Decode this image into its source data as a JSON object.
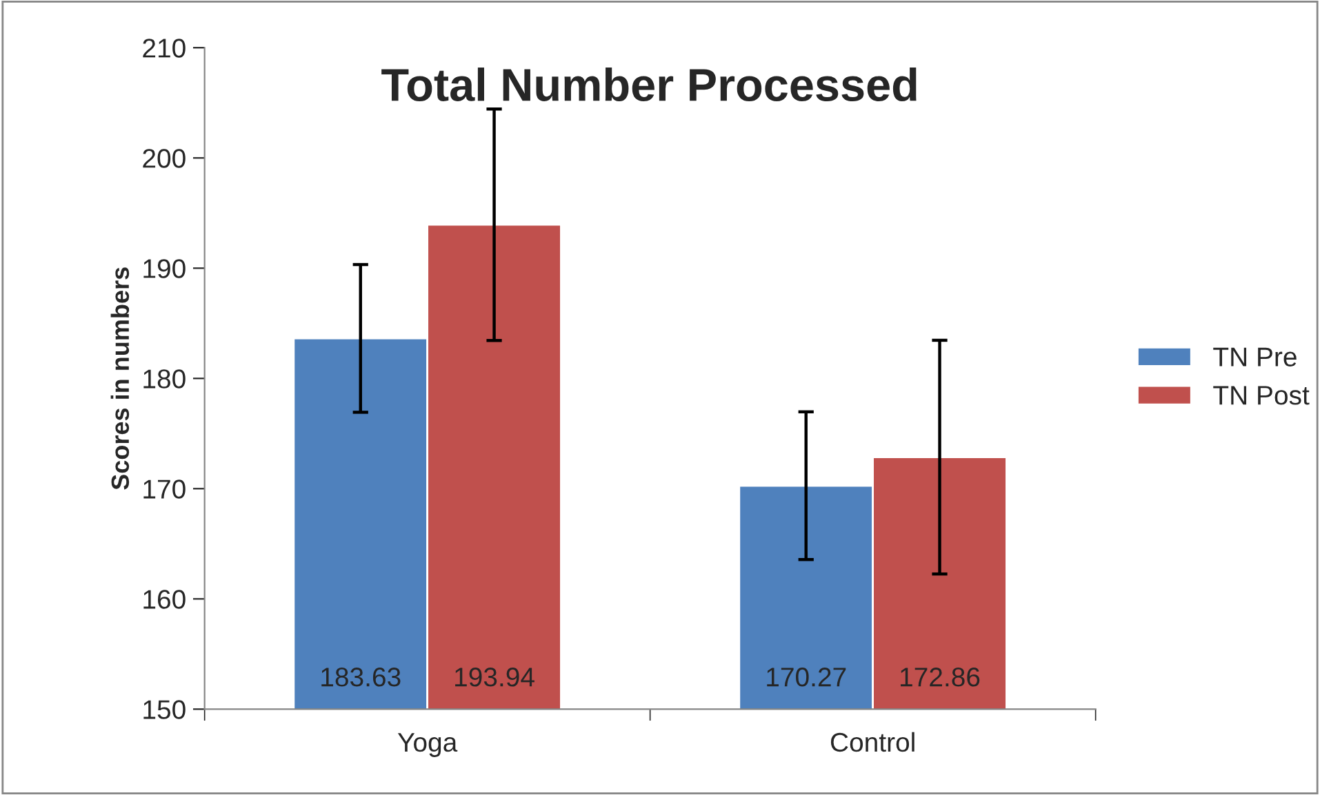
{
  "chart_data": {
    "type": "bar",
    "title": "Total Number Processed",
    "ylabel": "Scores in numbers",
    "categories": [
      "Yoga",
      "Control"
    ],
    "series": [
      {
        "name": "TN Pre",
        "color": "#4f81bd",
        "values": [
          183.63,
          170.27
        ],
        "errors": [
          6.7,
          6.7
        ]
      },
      {
        "name": "TN Post",
        "color": "#c0504d",
        "values": [
          193.94,
          172.86
        ],
        "errors": [
          10.5,
          10.6
        ]
      }
    ],
    "ylim": [
      150,
      210
    ],
    "yticks": [
      150,
      160,
      170,
      180,
      190,
      200,
      210
    ],
    "grid": false,
    "legend": "right",
    "data_labels": true
  }
}
